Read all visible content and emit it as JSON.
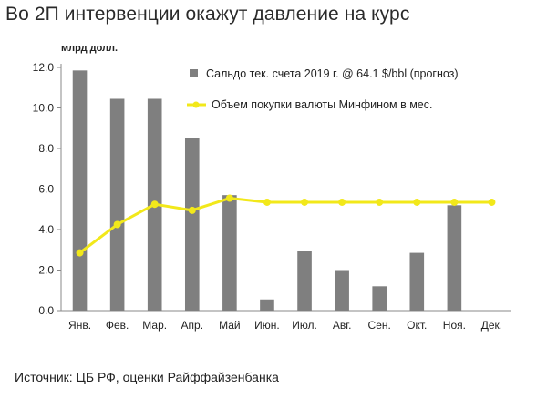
{
  "title": "Во 2П интервенции окажут давление на курс",
  "unit_label": "млрд долл.",
  "source_note": "Источник: ЦБ РФ, оценки Райффайзенбанка",
  "chart_data": {
    "type": "bar+line",
    "categories": [
      "Янв.",
      "Фев.",
      "Мар.",
      "Апр.",
      "Май",
      "Июн.",
      "Июл.",
      "Авг.",
      "Сен.",
      "Окт.",
      "Ноя.",
      "Дек."
    ],
    "ylim": [
      0,
      12
    ],
    "yticks": [
      "0.0",
      "2.0",
      "4.0",
      "6.0",
      "8.0",
      "10.0",
      "12.0"
    ],
    "grid": false,
    "legend_position": "top-right",
    "series": [
      {
        "name": "Сальдо тек. счета 2019 г. @ 64.1 $/bbl (прогноз)",
        "type": "bar",
        "color": "#7f7f7f",
        "values": [
          11.85,
          10.45,
          10.45,
          8.5,
          5.7,
          0.55,
          2.95,
          2.0,
          1.2,
          2.85,
          5.2,
          null
        ]
      },
      {
        "name": "Объем покупки валюты Минфином в мес.",
        "type": "line",
        "color": "#f2e81a",
        "values": [
          2.85,
          4.25,
          5.25,
          4.95,
          5.55,
          5.35,
          5.35,
          5.35,
          5.35,
          5.35,
          5.35,
          5.35
        ]
      }
    ]
  }
}
